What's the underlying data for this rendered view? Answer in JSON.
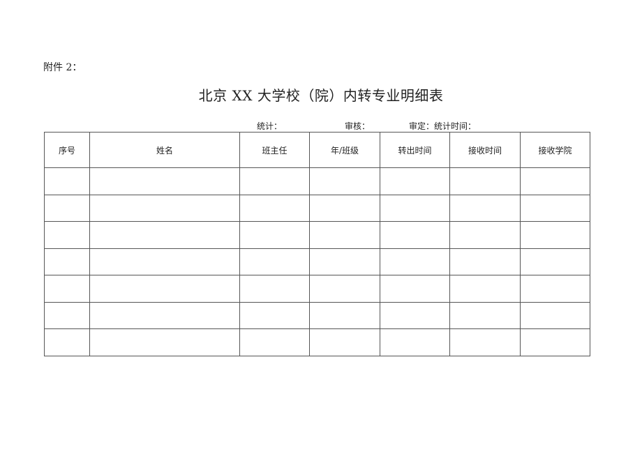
{
  "attachment_label": "附件 2：",
  "title": "北京 XX 大学校（院）内转专业明细表",
  "signoff": {
    "tongji": "统计：",
    "shenhe": "审核：",
    "shending": "审定：统计时间："
  },
  "table": {
    "headers": [
      "序号",
      "姓名",
      "班主任",
      "年/班级",
      "转出时间",
      "接收时间",
      "接收学院"
    ],
    "rows": [
      [
        "",
        "",
        "",
        "",
        "",
        "",
        ""
      ],
      [
        "",
        "",
        "",
        "",
        "",
        "",
        ""
      ],
      [
        "",
        "",
        "",
        "",
        "",
        "",
        ""
      ],
      [
        "",
        "",
        "",
        "",
        "",
        "",
        ""
      ],
      [
        "",
        "",
        "",
        "",
        "",
        "",
        ""
      ],
      [
        "",
        "",
        "",
        "",
        "",
        "",
        ""
      ],
      [
        "",
        "",
        "",
        "",
        "",
        "",
        ""
      ]
    ]
  }
}
